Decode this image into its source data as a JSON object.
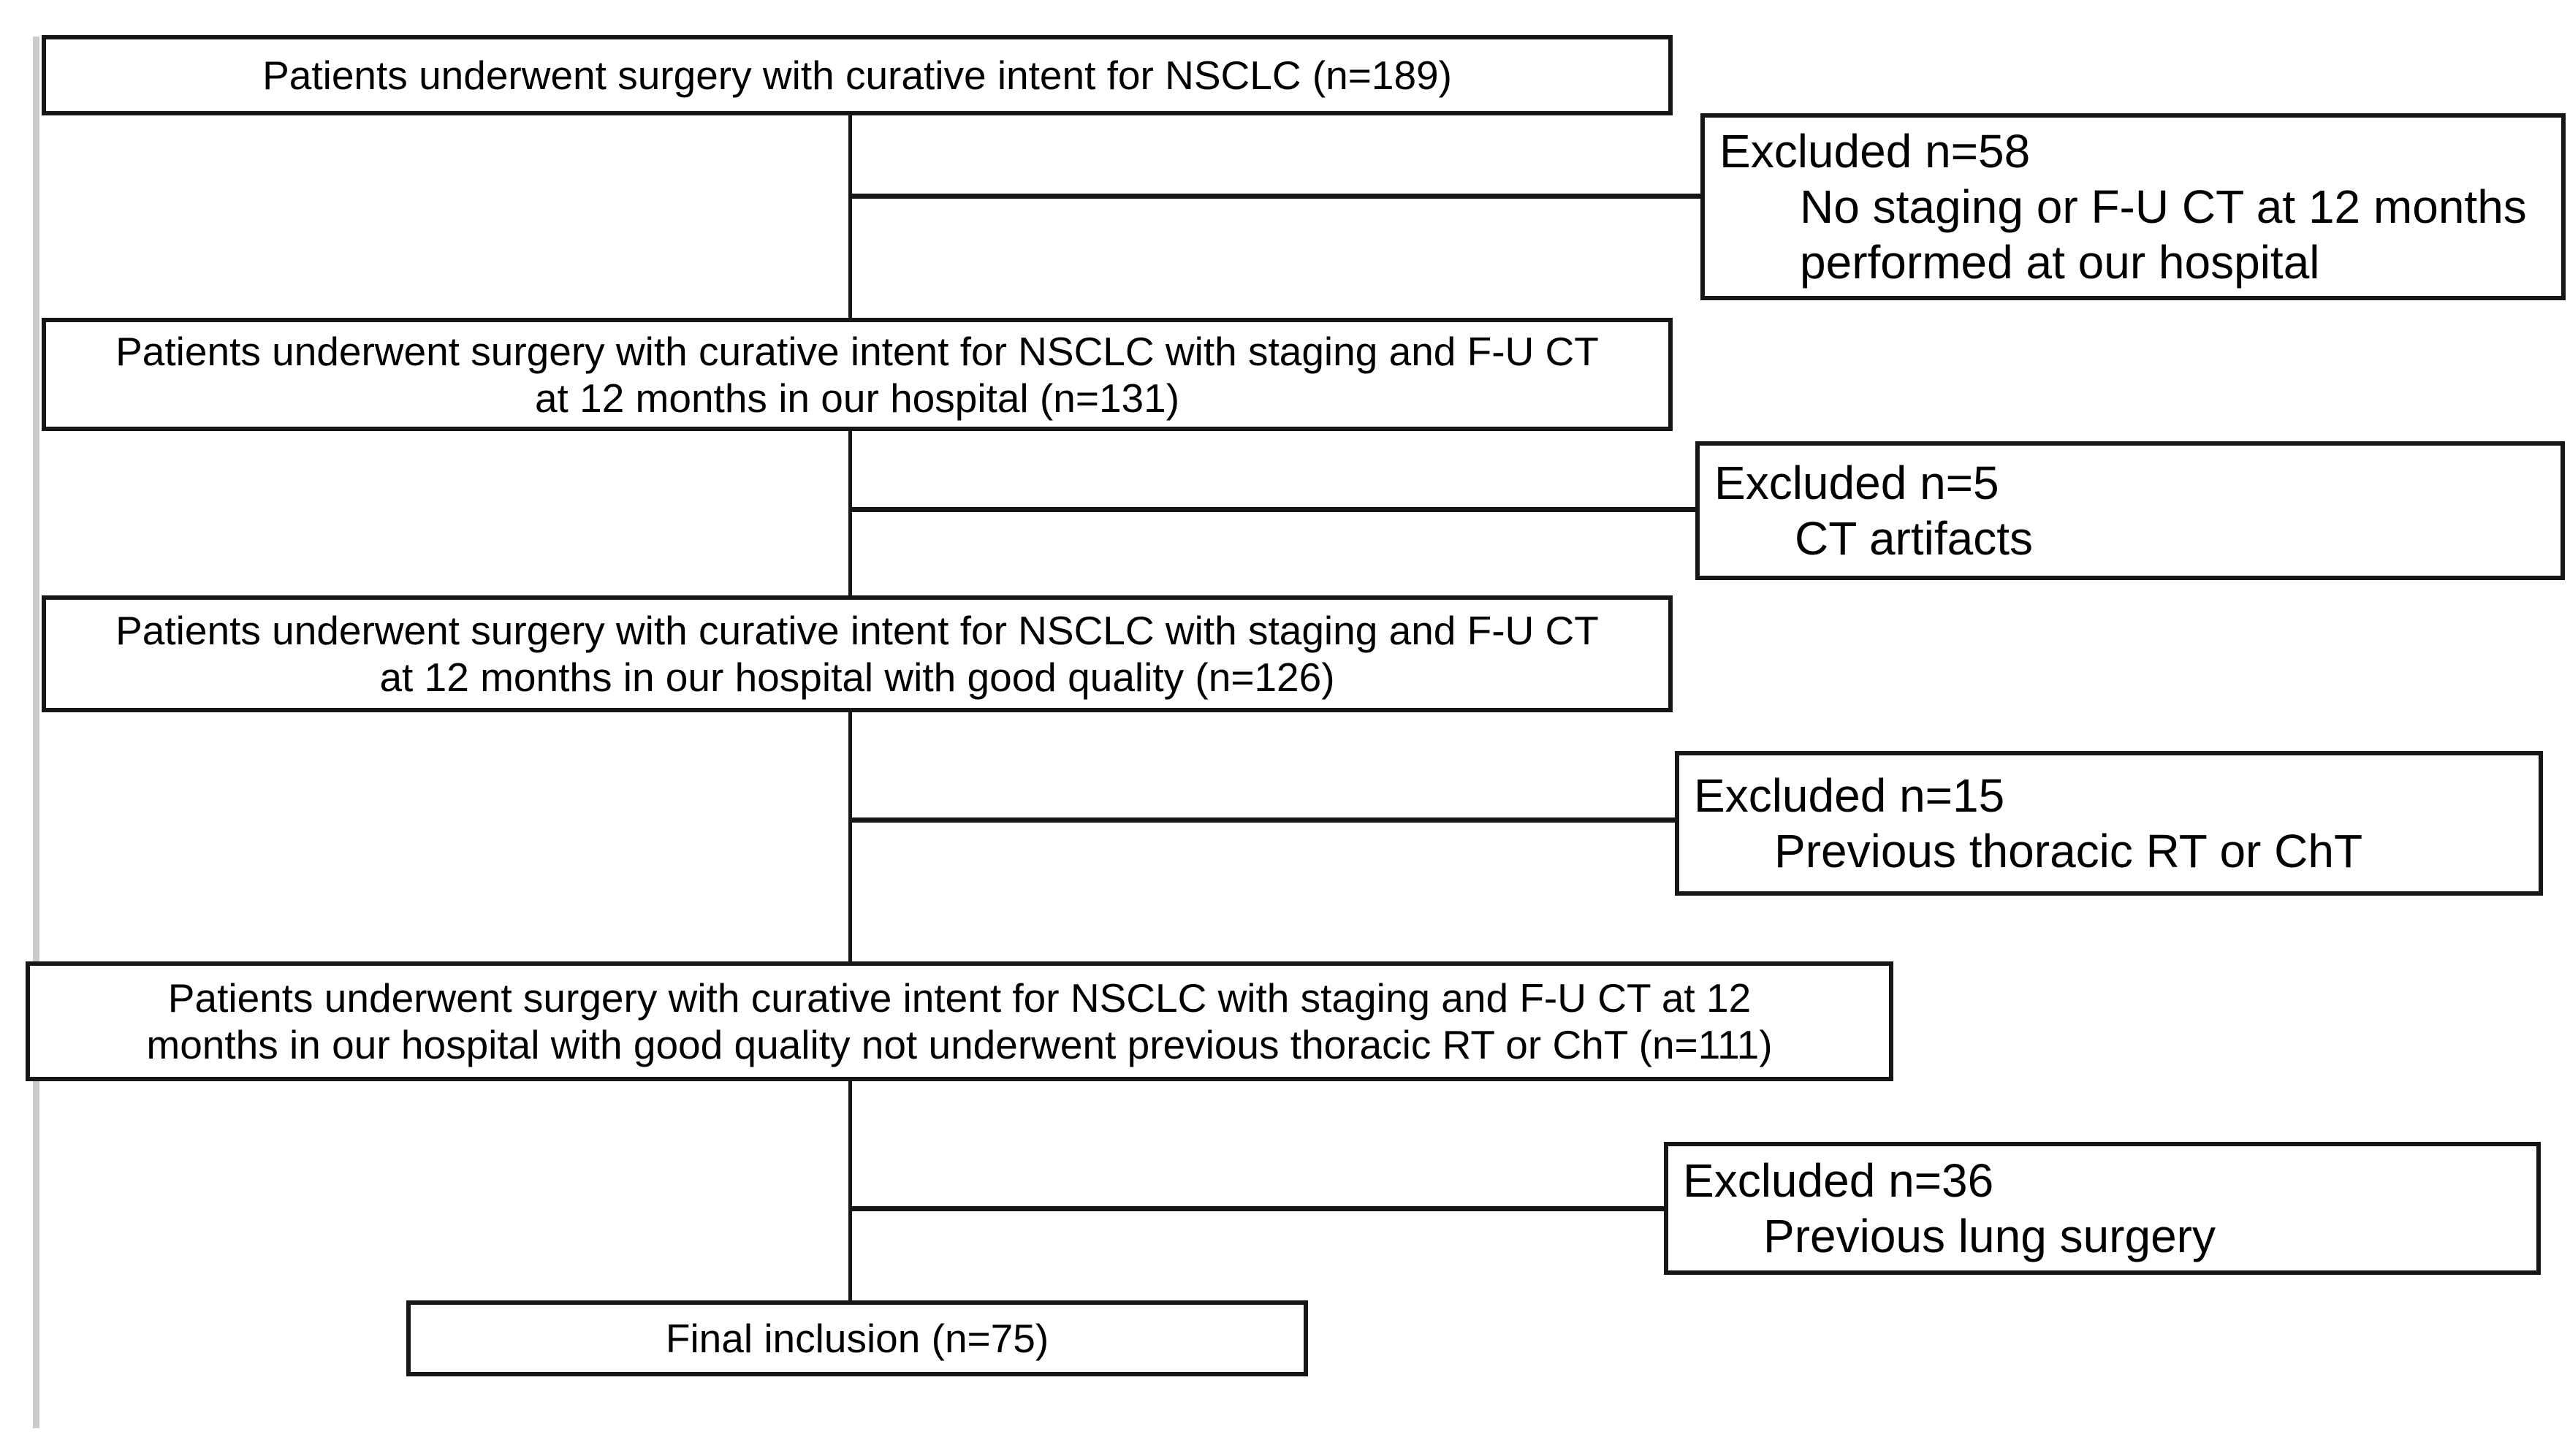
{
  "figure": {
    "type": "patient-flow-diagram",
    "flow_boxes": [
      {
        "n": 189,
        "lines": [
          "Patients underwent surgery with curative intent for NSCLC (n=189)"
        ]
      },
      {
        "n": 131,
        "lines": [
          "Patients underwent surgery with curative intent for NSCLC with staging and F-U CT",
          "at 12 months in our hospital (n=131)"
        ]
      },
      {
        "n": 126,
        "lines": [
          "Patients underwent surgery with curative intent for NSCLC with staging and F-U CT",
          "at 12 months in our hospital with good quality (n=126)"
        ]
      },
      {
        "n": 111,
        "lines": [
          "Patients underwent surgery with curative intent for NSCLC with staging and F-U CT at 12",
          "months in our hospital with good quality not underwent previous thoracic RT or ChT (n=111)"
        ]
      },
      {
        "n": 75,
        "lines": [
          "Final inclusion (n=75)"
        ]
      }
    ],
    "exclusions": [
      {
        "label": "Excluded n=58",
        "n": 58,
        "reason_lines": [
          "No staging or F-U CT at 12 months",
          "performed at our hospital"
        ]
      },
      {
        "label": "Excluded n=5",
        "n": 5,
        "reason_lines": [
          "CT artifacts"
        ]
      },
      {
        "label": "Excluded n=15",
        "n": 15,
        "reason_lines": [
          "Previous thoracic RT or ChT"
        ]
      },
      {
        "label": "Excluded n=36",
        "n": 36,
        "reason_lines": [
          "Previous lung surgery"
        ]
      }
    ],
    "colors": {
      "border": "#161616",
      "text": "#000000",
      "background": "#ffffff",
      "left_rule": "#cbcbcb"
    }
  }
}
